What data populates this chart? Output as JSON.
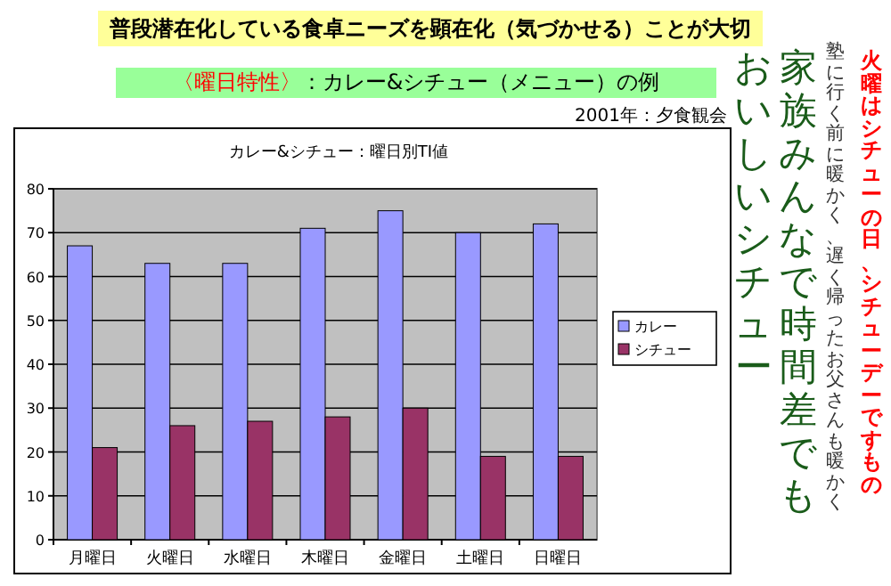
{
  "chart_data": {
    "type": "bar",
    "title": "普段潜在化している食卓ニーズを顕在化（気づかせる）ことが大切",
    "subtitle": "〈曜日特性〉：カレー&シチュー（メニュー）の例",
    "categories": [
      "月曜日",
      "火曜日",
      "水曜日",
      "木曜日",
      "金曜日",
      "土曜日",
      "日曜日"
    ],
    "series": [
      {
        "name": "カレー",
        "color": "#9999ff",
        "values": [
          67,
          63,
          63,
          71,
          75,
          70,
          72
        ]
      },
      {
        "name": "シチュー",
        "color": "#993366",
        "values": [
          21,
          26,
          27,
          28,
          30,
          19,
          19
        ]
      }
    ],
    "ylim": [
      0,
      80
    ],
    "yticks": [
      0,
      10,
      20,
      30,
      40,
      50,
      60,
      70,
      80
    ],
    "grid": "y",
    "legend": "right",
    "annotations": [
      "2001年：夕食観会",
      "カレー&シチュー：曜日別TI値",
      "火曜はシチューの日、シチューデーですもの",
      "塾に行く前に暖かく、遅く帰ったお父さんも暖かく",
      "家族みんなで時間差でも",
      "おいしいシチュー"
    ]
  }
}
